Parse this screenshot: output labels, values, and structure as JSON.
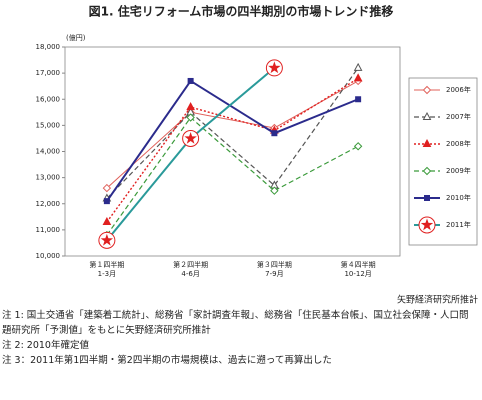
{
  "chart_data": {
    "type": "line",
    "title": "図1. 住宅リフォーム市場の四半期別の市場トレンド推移",
    "y_unit": "(億円)",
    "categories": [
      "第１四半期",
      "第２四半期",
      "第３四半期",
      "第４四半期"
    ],
    "category_sublabels": [
      "1-3月",
      "4-6月",
      "7-9月",
      "10-12月"
    ],
    "ylim": [
      10000,
      18000
    ],
    "yticks": [
      {
        "value": 10000,
        "label": "10,000"
      },
      {
        "value": 11000,
        "label": "11,000"
      },
      {
        "value": 12000,
        "label": "12,000"
      },
      {
        "value": 13000,
        "label": "13,000"
      },
      {
        "value": 14000,
        "label": "14,000"
      },
      {
        "value": 15000,
        "label": "15,000"
      },
      {
        "value": 16000,
        "label": "16,000"
      },
      {
        "value": 17000,
        "label": "17,000"
      },
      {
        "value": 18000,
        "label": "18,000"
      }
    ],
    "series": [
      {
        "name": "2006年",
        "color": "#e0605a",
        "marker": "diamond-open",
        "dash": "solid",
        "values": [
          12600,
          15500,
          14900,
          16700
        ]
      },
      {
        "name": "2007年",
        "color": "#555555",
        "marker": "triangle-open",
        "dash": "dashed",
        "values": [
          12200,
          15500,
          12700,
          17200
        ]
      },
      {
        "name": "2008年",
        "color": "#e02020",
        "marker": "triangle",
        "dash": "dotted",
        "values": [
          11300,
          15700,
          14800,
          16800
        ]
      },
      {
        "name": "2009年",
        "color": "#3a9a3a",
        "marker": "diamond-open",
        "dash": "dashed",
        "values": [
          10800,
          15300,
          12500,
          14200
        ]
      },
      {
        "name": "2010年",
        "color": "#2b2b8c",
        "marker": "square",
        "dash": "thick",
        "values": [
          12100,
          16700,
          14700,
          16000
        ]
      },
      {
        "name": "2011年",
        "color": "#2a9a9a",
        "marker": "star-circle",
        "dash": "thick",
        "values": [
          10600,
          14500,
          17200,
          null
        ]
      }
    ],
    "source": "矢野経済研究所推計",
    "notes": [
      "注 1: 国土交通省「建築着工統計」、総務省「家計調査年報」、総務省「住民基本台帳」、国立社会保障・人口問題研究所「予測値」をもとに矢野経済研究所推計",
      "注 2: 2010年確定値",
      "注 3：2011年第1四半期・第2四半期の市場規模は、過去に遡って再算出した"
    ]
  }
}
